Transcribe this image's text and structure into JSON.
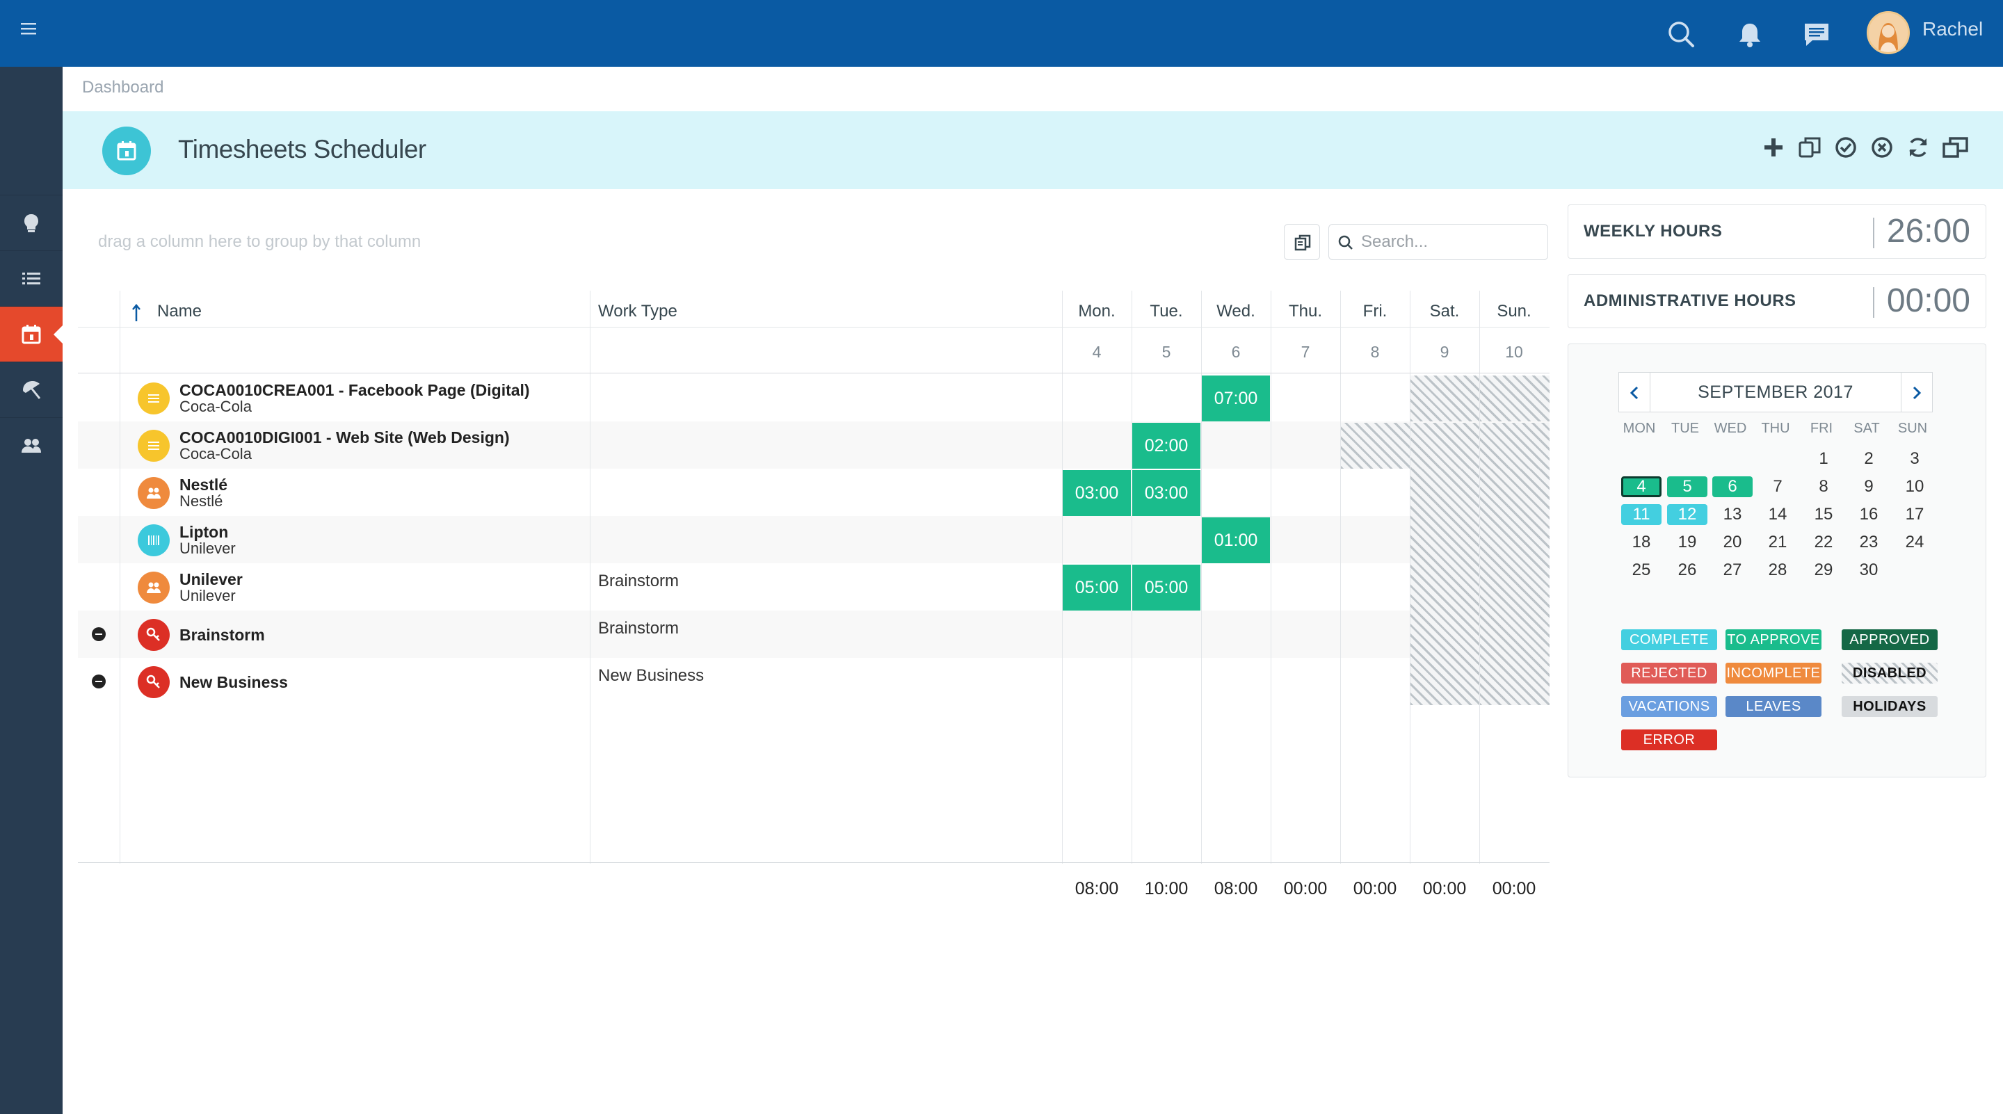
{
  "header": {
    "user_name": "Rachel"
  },
  "breadcrumb": "Dashboard",
  "page": {
    "title": "Timesheets Scheduler"
  },
  "grid": {
    "group_hint": "drag a column here to group by that column",
    "search_placeholder": "Search...",
    "columns": {
      "name": "Name",
      "work_type": "Work Type"
    },
    "days": [
      {
        "label": "Mon.",
        "date": "4"
      },
      {
        "label": "Tue.",
        "date": "5"
      },
      {
        "label": "Wed.",
        "date": "6"
      },
      {
        "label": "Thu.",
        "date": "7"
      },
      {
        "label": "Fri.",
        "date": "8"
      },
      {
        "label": "Sat.",
        "date": "9"
      },
      {
        "label": "Sun.",
        "date": "10"
      }
    ],
    "rows": [
      {
        "name": "COCA0010CREA001 - Facebook Page (Digital)",
        "client": "Coca-Cola",
        "work_type": ""
      },
      {
        "name": "COCA0010DIGI001 - Web Site (Web Design)",
        "client": "Coca-Cola",
        "work_type": ""
      },
      {
        "name": "Nestlé",
        "client": "Nestlé",
        "work_type": ""
      },
      {
        "name": "Lipton",
        "client": "Unilever",
        "work_type": ""
      },
      {
        "name": "Unilever",
        "client": "Unilever",
        "work_type": "Brainstorm"
      },
      {
        "name": "Brainstorm",
        "client": "",
        "work_type": "Brainstorm"
      },
      {
        "name": "New Business",
        "client": "",
        "work_type": "New Business"
      }
    ],
    "hours": {
      "r0_wed": "07:00",
      "r1_tue": "02:00",
      "r2_mon": "03:00",
      "r2_tue": "03:00",
      "r3_wed": "01:00",
      "r4_mon": "05:00",
      "r4_tue": "05:00"
    },
    "totals": [
      "08:00",
      "10:00",
      "08:00",
      "00:00",
      "00:00",
      "00:00",
      "00:00"
    ]
  },
  "summary": {
    "weekly_label": "WEEKLY HOURS",
    "weekly_value": "26:00",
    "admin_label": "ADMINISTRATIVE HOURS",
    "admin_value": "00:00"
  },
  "calendar": {
    "title": "SEPTEMBER 2017",
    "weekdays": [
      "MON",
      "TUE",
      "WED",
      "THU",
      "FRI",
      "SAT",
      "SUN"
    ],
    "days": [
      "1",
      "2",
      "3",
      "4",
      "5",
      "6",
      "7",
      "8",
      "9",
      "10",
      "11",
      "12",
      "13",
      "14",
      "15",
      "16",
      "17",
      "18",
      "19",
      "20",
      "21",
      "22",
      "23",
      "24",
      "25",
      "26",
      "27",
      "28",
      "29",
      "30"
    ]
  },
  "legend": {
    "complete": "COMPLETE",
    "to_approve": "TO APPROVE",
    "approved": "APPROVED",
    "rejected": "REJECTED",
    "incomplete": "INCOMPLETE",
    "disabled": "DISABLED",
    "vacations": "VACATIONS",
    "leaves": "LEAVES",
    "holidays": "HOLIDAYS",
    "error": "ERROR"
  },
  "colors": {
    "header": "#0a5aa3",
    "sidebar": "#283c51",
    "active_nav": "#e5492c",
    "approved_cell": "#1abc8c",
    "title_bar": "#d8f5fa",
    "complete": "#43cfe0"
  }
}
